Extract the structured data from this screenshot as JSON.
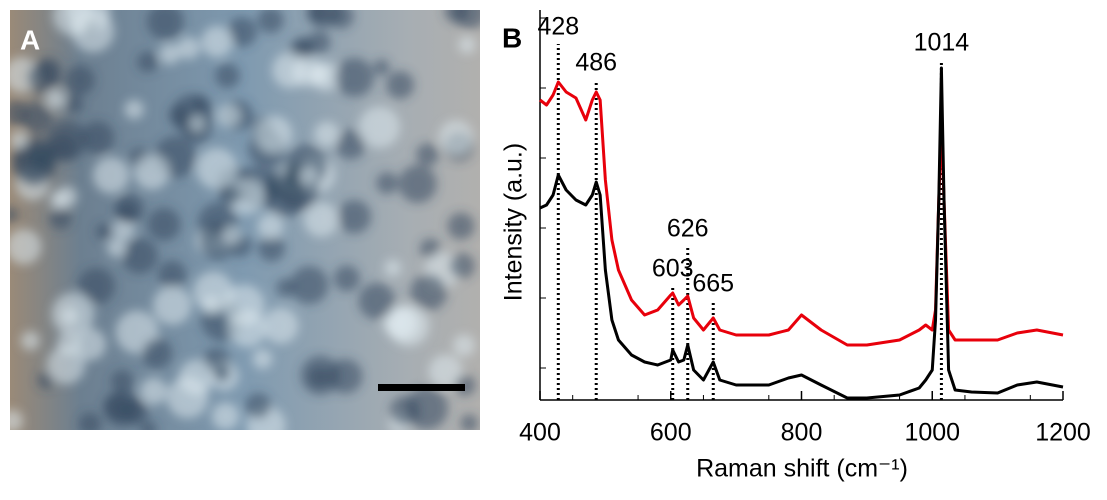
{
  "image_panel": {
    "label": "A"
  },
  "chart_data": {
    "type": "line",
    "panel_label": "B",
    "x_label": "Raman shift (cm⁻¹)",
    "y_label": "Intensity (a.u.)",
    "x": [
      400,
      410,
      420,
      428,
      440,
      455,
      470,
      480,
      486,
      492,
      500,
      510,
      520,
      540,
      560,
      580,
      600,
      603,
      612,
      620,
      626,
      635,
      650,
      665,
      675,
      700,
      750,
      780,
      800,
      830,
      870,
      900,
      950,
      980,
      990,
      1000,
      1005,
      1010,
      1014,
      1018,
      1025,
      1035,
      1060,
      1100,
      1130,
      1160,
      1200
    ],
    "series": [
      {
        "color": "#e8000b",
        "values": [
          300,
          295,
          305,
          318,
          308,
          302,
          280,
          300,
          308,
          300,
          220,
          160,
          130,
          100,
          85,
          90,
          105,
          107,
          95,
          100,
          104,
          82,
          70,
          82,
          70,
          65,
          65,
          70,
          85,
          70,
          55,
          55,
          60,
          70,
          75,
          70,
          90,
          200,
          278,
          200,
          70,
          60,
          60,
          60,
          67,
          70,
          65
        ]
      },
      {
        "color": "#000000",
        "values": [
          192,
          195,
          205,
          225,
          210,
          200,
          195,
          205,
          218,
          205,
          130,
          80,
          60,
          45,
          38,
          35,
          40,
          50,
          38,
          40,
          55,
          30,
          20,
          38,
          20,
          15,
          15,
          22,
          25,
          15,
          2,
          2,
          5,
          12,
          20,
          30,
          80,
          200,
          332,
          200,
          30,
          10,
          8,
          7,
          15,
          18,
          13
        ]
      }
    ],
    "peak_labels": [
      428,
      486,
      603,
      626,
      665,
      1014
    ],
    "xlim": [
      400,
      1200
    ],
    "xticks": [
      400,
      600,
      800,
      1000,
      1200
    ],
    "ylim": [
      0,
      390
    ]
  }
}
